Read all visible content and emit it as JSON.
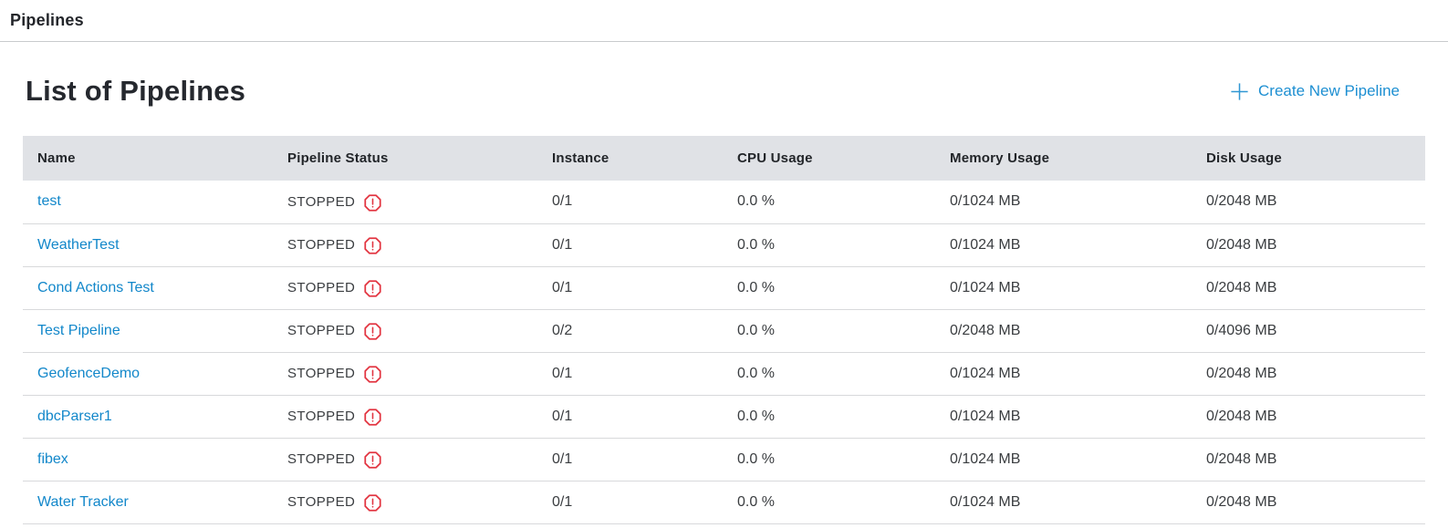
{
  "topbar": {
    "title": "Pipelines"
  },
  "page": {
    "heading": "List of Pipelines",
    "create_button": {
      "icon": "plus-icon",
      "label": "Create New Pipeline"
    }
  },
  "table": {
    "columns": [
      "Name",
      "Pipeline Status",
      "Instance",
      "CPU Usage",
      "Memory Usage",
      "Disk Usage"
    ],
    "status_icon": "octagon-alert-icon",
    "rows": [
      {
        "name": "test",
        "status": "STOPPED",
        "instance": "0/1",
        "cpu": "0.0 %",
        "memory": "0/1024 MB",
        "disk": "0/2048 MB"
      },
      {
        "name": "WeatherTest",
        "status": "STOPPED",
        "instance": "0/1",
        "cpu": "0.0 %",
        "memory": "0/1024 MB",
        "disk": "0/2048 MB"
      },
      {
        "name": "Cond Actions Test",
        "status": "STOPPED",
        "instance": "0/1",
        "cpu": "0.0 %",
        "memory": "0/1024 MB",
        "disk": "0/2048 MB"
      },
      {
        "name": "Test Pipeline",
        "status": "STOPPED",
        "instance": "0/2",
        "cpu": "0.0 %",
        "memory": "0/2048 MB",
        "disk": "0/4096 MB"
      },
      {
        "name": "GeofenceDemo",
        "status": "STOPPED",
        "instance": "0/1",
        "cpu": "0.0 %",
        "memory": "0/1024 MB",
        "disk": "0/2048 MB"
      },
      {
        "name": "dbcParser1",
        "status": "STOPPED",
        "instance": "0/1",
        "cpu": "0.0 %",
        "memory": "0/1024 MB",
        "disk": "0/2048 MB"
      },
      {
        "name": "fibex",
        "status": "STOPPED",
        "instance": "0/1",
        "cpu": "0.0 %",
        "memory": "0/1024 MB",
        "disk": "0/2048 MB"
      },
      {
        "name": "Water Tracker",
        "status": "STOPPED",
        "instance": "0/1",
        "cpu": "0.0 %",
        "memory": "0/1024 MB",
        "disk": "0/2048 MB"
      }
    ]
  },
  "colors": {
    "link_blue": "#1287ca",
    "create_blue": "#1d8fd2",
    "danger_red": "#e23440",
    "header_bg": "#e0e2e6",
    "row_border": "#d8d9db"
  }
}
